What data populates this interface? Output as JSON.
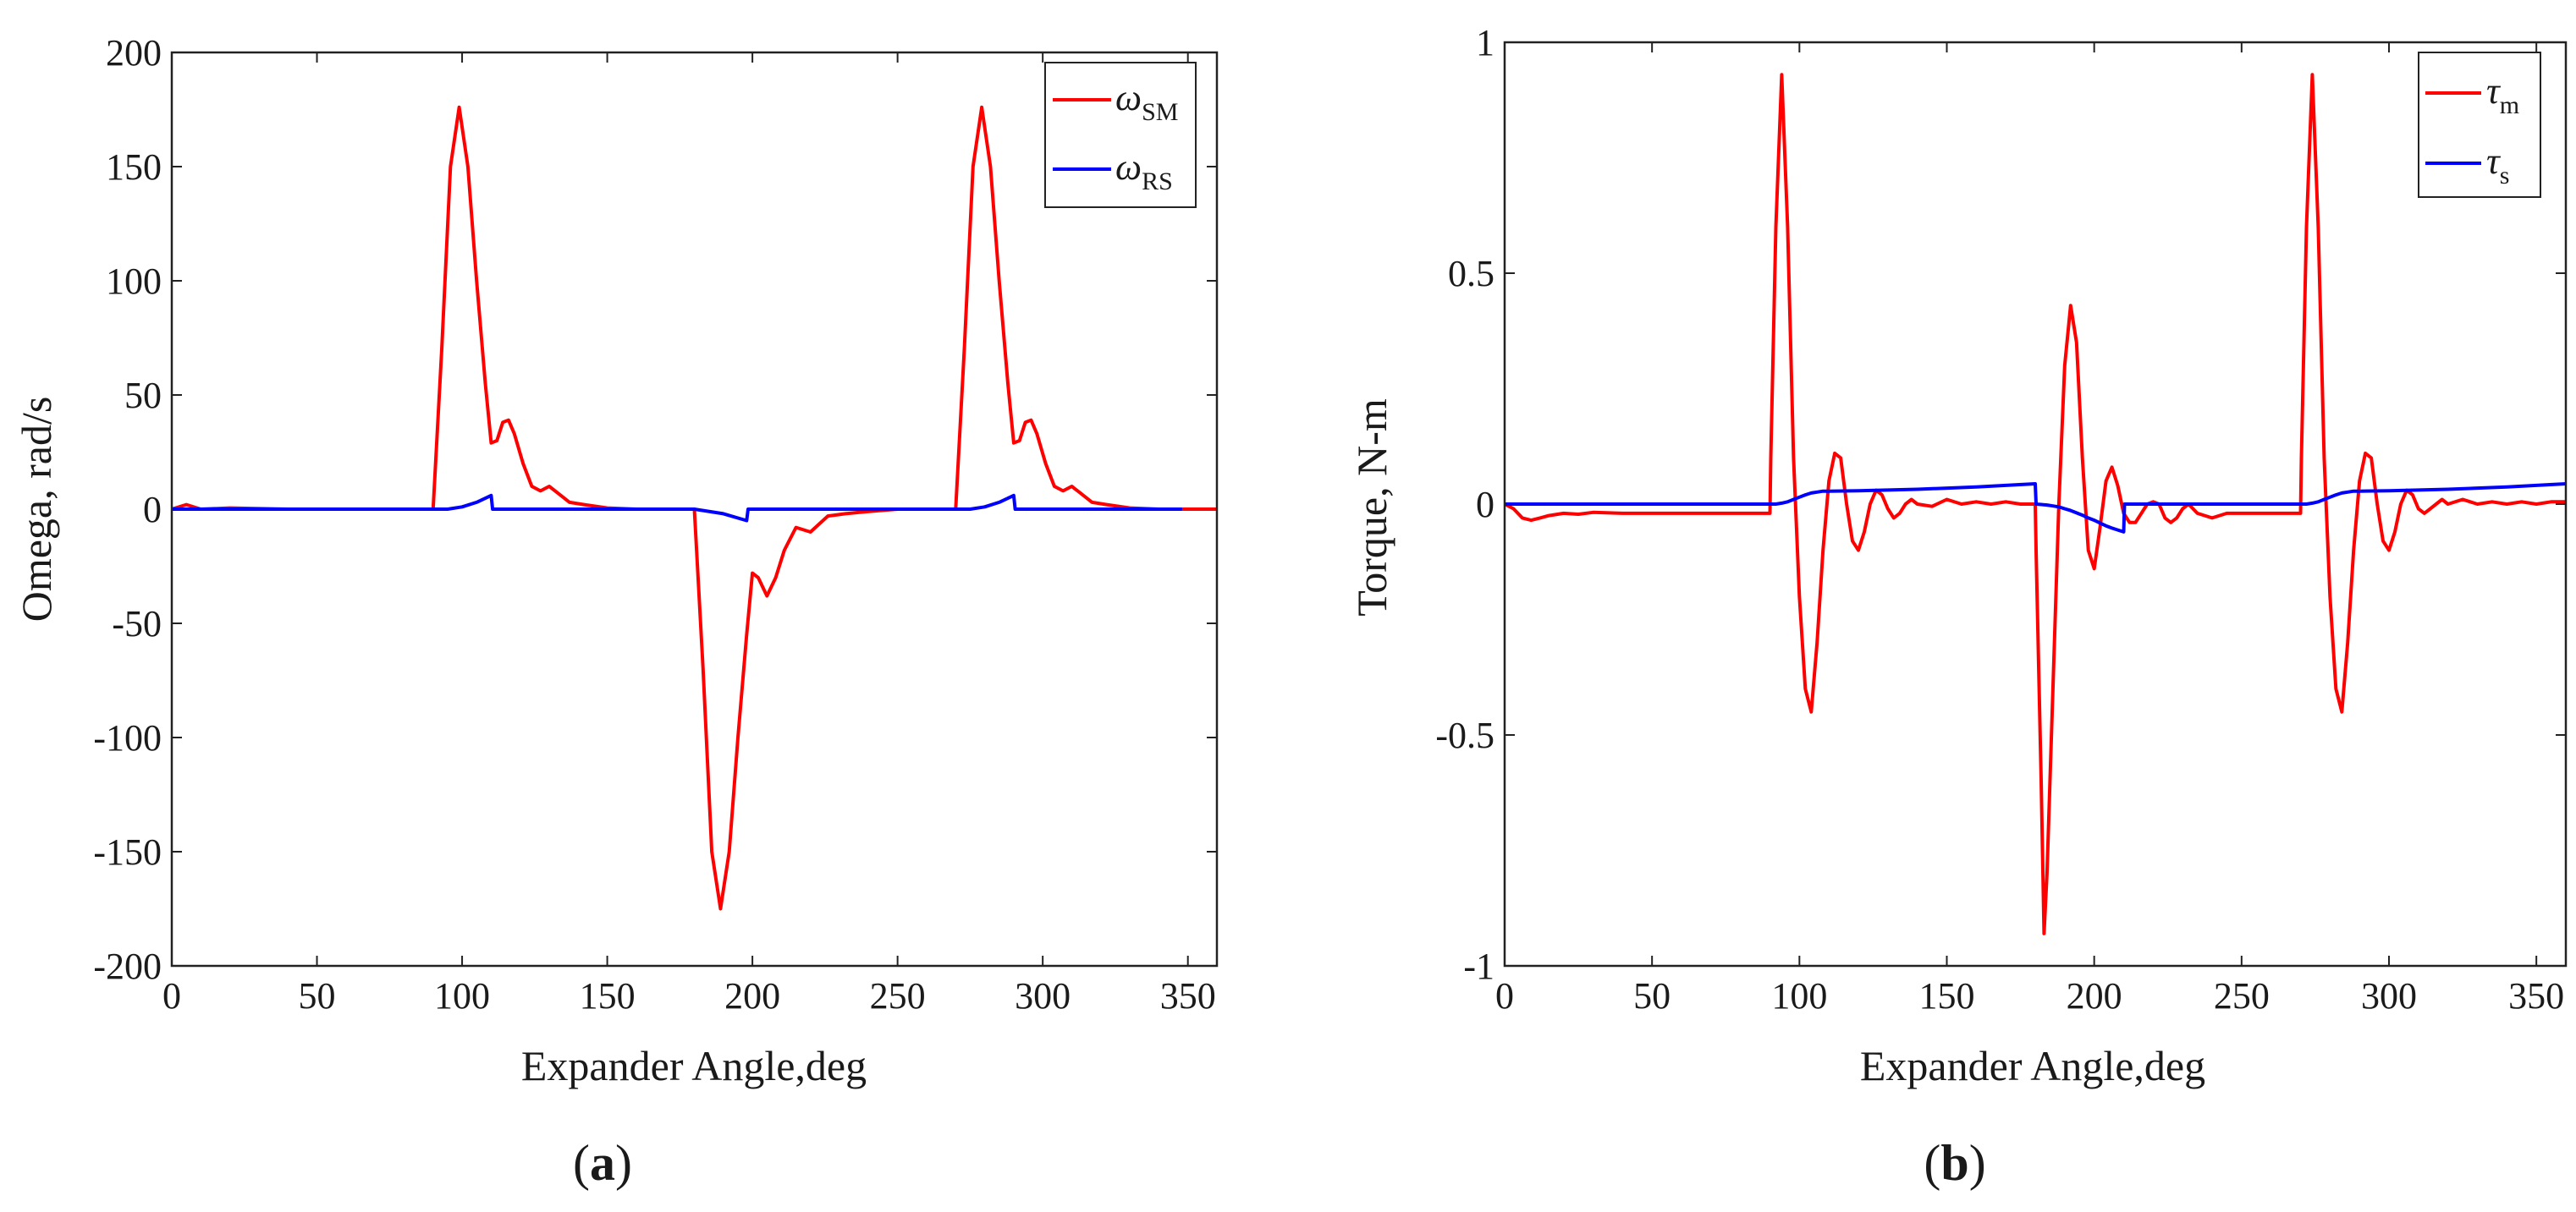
{
  "chart_data": [
    {
      "type": "line",
      "panel_label": "(a)",
      "panel_letter": "a",
      "xlabel": "Expander Angle,deg",
      "ylabel": "Omega, rad/s",
      "xlim": [
        0,
        360
      ],
      "ylim": [
        -200,
        200
      ],
      "xticks": [
        0,
        50,
        100,
        150,
        200,
        250,
        300,
        350
      ],
      "yticks": [
        200,
        150,
        100,
        50,
        0,
        -50,
        -100,
        -150,
        -200
      ],
      "grid": false,
      "legend_position": "top-right",
      "series": [
        {
          "name": "ωSM",
          "symbol": "ω",
          "subscript": "SM",
          "color": "#ff0000",
          "x": [
            0,
            5,
            10,
            20,
            40,
            60,
            80,
            89,
            90,
            93,
            96,
            99,
            102,
            105,
            108,
            110,
            112,
            114,
            116,
            118,
            121,
            124,
            127,
            130,
            133,
            137,
            142,
            150,
            160,
            170,
            178,
            180,
            183,
            186,
            189,
            192,
            195,
            198,
            200,
            202,
            205,
            208,
            211,
            215,
            220,
            226,
            232,
            240,
            250,
            260,
            269,
            270,
            273,
            276,
            279,
            282,
            285,
            288,
            290,
            292,
            294,
            296,
            298,
            301,
            304,
            307,
            310,
            313,
            317,
            322,
            330,
            340,
            350,
            360
          ],
          "values": [
            0,
            2,
            0,
            0.5,
            0,
            0,
            0,
            0,
            0,
            70,
            150,
            176,
            150,
            100,
            55,
            29,
            30,
            38,
            39,
            33,
            20,
            10,
            8,
            10,
            7,
            3,
            2,
            0.5,
            0,
            0,
            0,
            0,
            -70,
            -150,
            -175,
            -150,
            -100,
            -55,
            -28,
            -30,
            -38,
            -30,
            -18,
            -8,
            -10,
            -3,
            -2,
            -1,
            0,
            0,
            0,
            0,
            70,
            150,
            176,
            150,
            100,
            55,
            29,
            30,
            38,
            39,
            33,
            20,
            10,
            8,
            10,
            7,
            3,
            2,
            0.5,
            0,
            0,
            0
          ]
        },
        {
          "name": "ωRS",
          "symbol": "ω",
          "subscript": "RS",
          "color": "#0000ff",
          "x": [
            0,
            10,
            20,
            40,
            60,
            80,
            90,
            95,
            100,
            105,
            110,
            110.5,
            120,
            140,
            160,
            168,
            180,
            190,
            198,
            198.5,
            200,
            204,
            212,
            220,
            240,
            260,
            270,
            275,
            280,
            285,
            290,
            290.5,
            300,
            320,
            340,
            348
          ],
          "values": [
            0,
            0,
            0,
            0,
            0,
            0,
            0,
            0,
            1,
            3,
            6,
            0,
            0,
            0,
            0,
            0,
            0,
            -2,
            -5,
            0,
            0,
            0,
            0,
            0,
            0,
            0,
            0,
            0,
            1,
            3,
            6,
            0,
            0,
            0,
            0,
            0
          ]
        }
      ]
    },
    {
      "type": "line",
      "panel_label": "(b)",
      "panel_letter": "b",
      "xlabel": "Expander Angle,deg",
      "ylabel": "Torque, N-m",
      "xlim": [
        0,
        360
      ],
      "ylim": [
        -1,
        1
      ],
      "xticks": [
        0,
        50,
        100,
        150,
        200,
        250,
        300,
        350
      ],
      "yticks": [
        1,
        0.5,
        0,
        -0.5,
        -1
      ],
      "grid": false,
      "legend_position": "top-right",
      "series": [
        {
          "name": "τm",
          "symbol": "τ",
          "subscript": "m",
          "color": "#ff0000",
          "x": [
            0,
            3,
            6,
            9,
            12,
            15,
            20,
            25,
            30,
            40,
            50,
            60,
            70,
            80,
            90,
            90.3,
            92,
            94,
            96,
            98,
            100,
            102,
            104,
            106,
            108,
            110,
            112,
            114,
            116,
            118,
            120,
            122,
            124,
            126,
            128,
            130,
            132,
            134,
            136,
            138,
            140,
            145,
            150,
            155,
            160,
            165,
            170,
            175,
            180,
            180.3,
            182,
            183,
            184,
            186,
            188,
            190,
            192,
            194,
            196,
            198,
            200,
            202,
            204,
            206,
            208,
            210,
            212,
            214,
            216,
            218,
            220,
            222,
            224,
            226,
            228,
            230,
            232,
            235,
            240,
            245,
            250,
            255,
            260,
            265,
            270,
            270.3,
            272,
            274,
            276,
            278,
            280,
            282,
            284,
            286,
            288,
            290,
            292,
            294,
            296,
            298,
            300,
            302,
            304,
            306,
            308,
            310,
            312,
            314,
            316,
            318,
            320,
            325,
            330,
            335,
            340,
            345,
            350,
            355,
            360
          ],
          "values": [
            0,
            -0.01,
            -0.03,
            -0.035,
            -0.03,
            -0.025,
            -0.02,
            -0.022,
            -0.018,
            -0.02,
            -0.02,
            -0.02,
            -0.02,
            -0.02,
            -0.02,
            0.1,
            0.6,
            0.93,
            0.6,
            0.1,
            -0.2,
            -0.4,
            -0.45,
            -0.3,
            -0.1,
            0.05,
            0.11,
            0.1,
            0.0,
            -0.08,
            -0.1,
            -0.06,
            0.0,
            0.03,
            0.02,
            -0.01,
            -0.03,
            -0.02,
            0.0,
            0.01,
            0.0,
            -0.005,
            0.01,
            0.0,
            0.005,
            0.0,
            0.005,
            0.0,
            0.0,
            -0.1,
            -0.6,
            -0.93,
            -0.8,
            -0.4,
            0.0,
            0.3,
            0.43,
            0.35,
            0.1,
            -0.1,
            -0.14,
            -0.05,
            0.05,
            0.08,
            0.04,
            -0.02,
            -0.04,
            -0.04,
            -0.02,
            0.0,
            0.005,
            0.0,
            -0.03,
            -0.04,
            -0.03,
            -0.01,
            0.0,
            -0.02,
            -0.03,
            -0.02,
            -0.02,
            -0.02,
            -0.02,
            -0.02,
            -0.02,
            0.1,
            0.6,
            0.93,
            0.6,
            0.1,
            -0.2,
            -0.4,
            -0.45,
            -0.3,
            -0.1,
            0.05,
            0.11,
            0.1,
            0.0,
            -0.08,
            -0.1,
            -0.06,
            0.0,
            0.03,
            0.02,
            -0.01,
            -0.02,
            -0.01,
            0.0,
            0.01,
            0.0,
            0.01,
            0.0,
            0.005,
            0.0,
            0.005,
            0.0,
            0.005,
            0.005
          ]
        },
        {
          "name": "τs",
          "symbol": "τ",
          "subscript": "s",
          "color": "#0000ff",
          "x": [
            0,
            20,
            40,
            60,
            80,
            90,
            92,
            94,
            96,
            98,
            100,
            102,
            104,
            106,
            108,
            110,
            120,
            140,
            160,
            180,
            180.3,
            182,
            184,
            186,
            188,
            190,
            192,
            194,
            196,
            198,
            200,
            202,
            204,
            206,
            208,
            210,
            210.3,
            220,
            240,
            260,
            270,
            272,
            274,
            276,
            278,
            280,
            282,
            284,
            286,
            288,
            290,
            300,
            320,
            340,
            360
          ],
          "values": [
            0,
            0,
            0,
            0,
            0,
            0,
            0,
            0.002,
            0.005,
            0.01,
            0.015,
            0.02,
            0.024,
            0.026,
            0.028,
            0.028,
            0.029,
            0.032,
            0.037,
            0.044,
            0.0,
            -0.001,
            -0.002,
            -0.004,
            -0.006,
            -0.01,
            -0.014,
            -0.019,
            -0.024,
            -0.03,
            -0.035,
            -0.041,
            -0.047,
            -0.052,
            -0.056,
            -0.06,
            0.0,
            0.0,
            0.0,
            0.0,
            0.0,
            0.0,
            0.002,
            0.005,
            0.01,
            0.015,
            0.02,
            0.024,
            0.026,
            0.028,
            0.028,
            0.029,
            0.032,
            0.037,
            0.044
          ]
        }
      ]
    }
  ]
}
